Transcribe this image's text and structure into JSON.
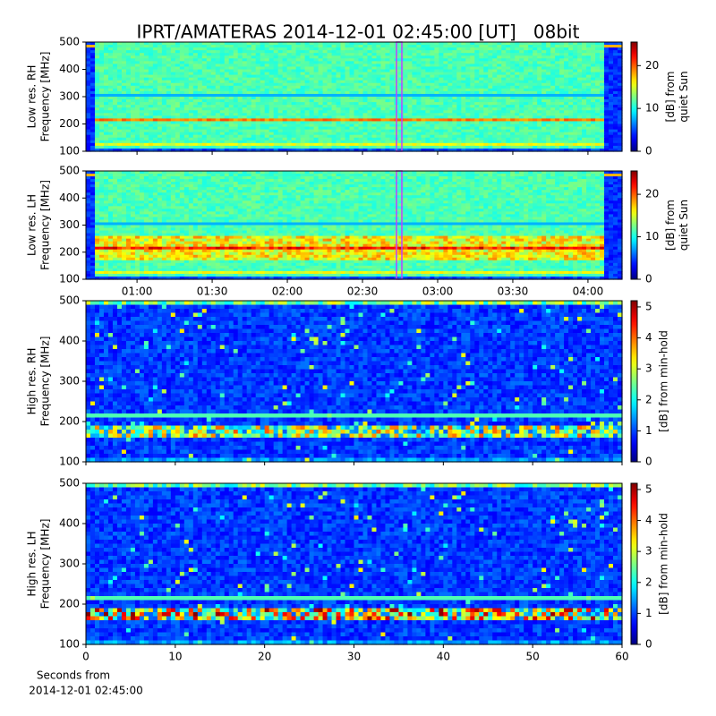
{
  "title": "IPRT/AMATERAS 2014-12-01 02:45:00 [UT]   08bit",
  "chart_data": [
    {
      "type": "spectrogram",
      "resolution": "low",
      "colormap": "jet",
      "ylabel": [
        "Low res. RH",
        "Frequency [MHz]"
      ],
      "ylim": [
        100,
        500
      ],
      "yticks": [
        100,
        200,
        300,
        400,
        500
      ],
      "xlim": [
        39.6,
        253.6
      ],
      "xticks": [
        60,
        90,
        120,
        150,
        180,
        210,
        240
      ],
      "clim": [
        0,
        25.5
      ],
      "cticks": [
        0,
        10,
        20
      ],
      "clabel": [
        "[dB] from",
        "quiet Sun"
      ]
    },
    {
      "type": "spectrogram",
      "resolution": "low",
      "colormap": "jet",
      "ylabel": [
        "Low res. LH",
        "Frequency [MHz]"
      ],
      "ylim": [
        100,
        500
      ],
      "yticks": [
        100,
        200,
        300,
        400,
        500
      ],
      "xlim": [
        39.6,
        253.6
      ],
      "xticks": [
        {
          "value": 60,
          "label": "01:00"
        },
        {
          "value": 90,
          "label": "01:30"
        },
        {
          "value": 120,
          "label": "02:00"
        },
        {
          "value": 150,
          "label": "02:30"
        },
        {
          "value": 180,
          "label": "03:00"
        },
        {
          "value": 210,
          "label": "03:30"
        },
        {
          "value": 240,
          "label": "04:00"
        }
      ],
      "clim": [
        0,
        25.5
      ],
      "cticks": [
        0,
        10,
        20
      ],
      "clabel": [
        "[dB] from",
        "quiet Sun"
      ]
    },
    {
      "type": "spectrogram",
      "resolution": "high",
      "colormap": "jet",
      "ylabel": [
        "High res. RH",
        "Frequency [MHz]"
      ],
      "ylim": [
        100,
        500
      ],
      "yticks": [
        100,
        200,
        300,
        400,
        500
      ],
      "xlim": [
        0,
        60
      ],
      "xticks": [
        0,
        10,
        20,
        30,
        40,
        50,
        60
      ],
      "clim": [
        0,
        5.2
      ],
      "cticks": [
        0,
        1,
        2,
        3,
        4,
        5
      ],
      "clabel": [
        "[dB] from min-hold"
      ]
    },
    {
      "type": "spectrogram",
      "resolution": "high",
      "colormap": "jet",
      "ylabel": [
        "High res. LH",
        "Frequency [MHz]"
      ],
      "ylim": [
        100,
        500
      ],
      "yticks": [
        100,
        200,
        300,
        400,
        500
      ],
      "xlim": [
        0,
        60
      ],
      "xticks": [
        0,
        10,
        20,
        30,
        40,
        50,
        60
      ],
      "show_xtick_labels": true,
      "xlabel": [
        "Seconds from",
        "2014-12-01 02:45:00"
      ],
      "clim": [
        0,
        5.2
      ],
      "cticks": [
        0,
        1,
        2,
        3,
        4,
        5
      ],
      "clabel": [
        "[dB] from min-hold"
      ]
    }
  ]
}
